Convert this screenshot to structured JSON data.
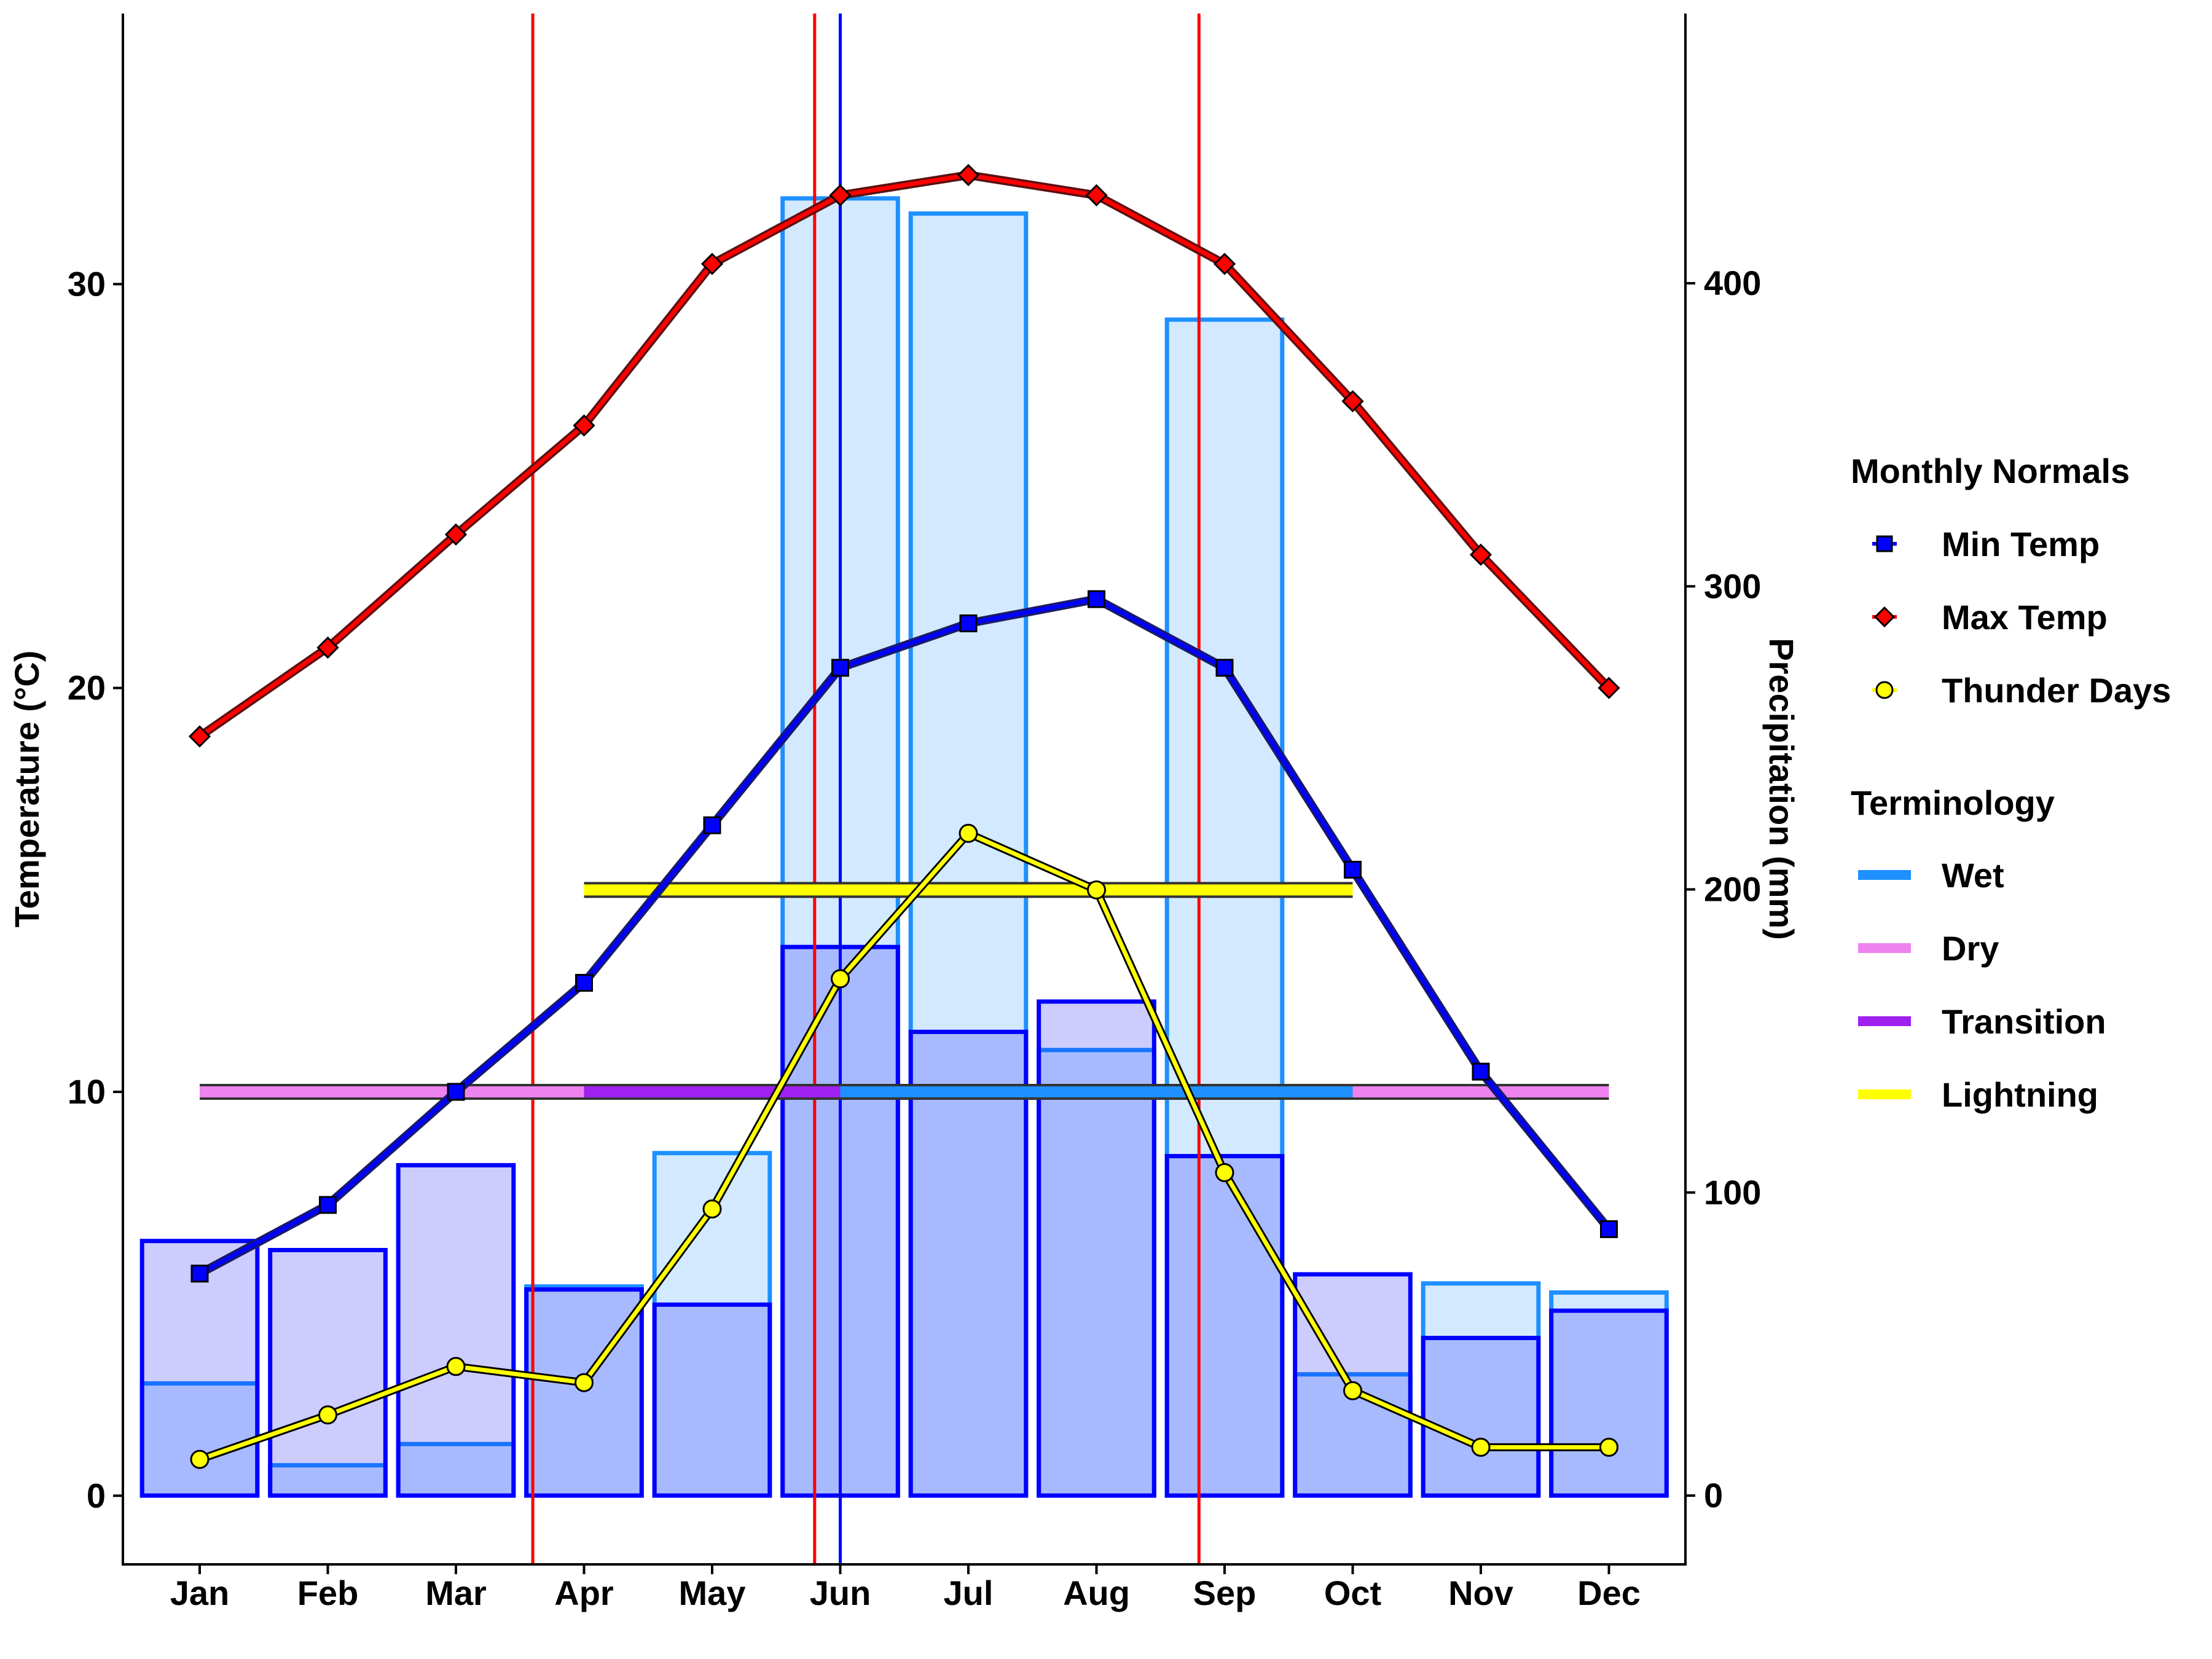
{
  "chart_data": {
    "type": "line",
    "title": "",
    "xlabel": "",
    "ylabel": "Temperature (°C)",
    "y2label": "Precipitation (mm)",
    "ylim": [
      -1.7,
      36.7
    ],
    "y2lim": [
      -22.7,
      489
    ],
    "categories": [
      "Jan",
      "Feb",
      "Mar",
      "Apr",
      "May",
      "Jun",
      "Jul",
      "Aug",
      "Sep",
      "Oct",
      "Nov",
      "Dec"
    ],
    "y_ticks": [
      0,
      10,
      20,
      30
    ],
    "y2_ticks": [
      0,
      100,
      200,
      300,
      400
    ],
    "series": [
      {
        "name": "Min Temp",
        "color": "#0000ff",
        "values": [
          5.5,
          7.2,
          10.0,
          12.7,
          16.6,
          20.5,
          21.6,
          22.2,
          20.5,
          15.5,
          10.5,
          6.6
        ]
      },
      {
        "name": "Max Temp",
        "color": "#ff0000",
        "values": [
          18.8,
          21.0,
          23.8,
          26.5,
          30.5,
          32.2,
          32.7,
          32.2,
          30.5,
          27.1,
          23.3,
          20.0
        ]
      },
      {
        "name": "Thunder Days",
        "color": "#ffff00",
        "values": [
          0.9,
          2.0,
          3.2,
          2.8,
          7.1,
          12.8,
          16.4,
          15.0,
          8.0,
          2.6,
          1.2,
          1.2
        ]
      }
    ],
    "precipitation_bars": {
      "light_series_mm": [
        37,
        10,
        17,
        69,
        113,
        428,
        423,
        147,
        388,
        40,
        70,
        67
      ],
      "dark_series_mm": [
        84,
        81,
        109,
        68,
        63,
        181,
        153,
        163,
        112,
        73,
        52,
        61
      ]
    },
    "terminology_bands": [
      {
        "name": "Dry",
        "color": "#ee82ee",
        "y": 10,
        "from": "Jan",
        "to": "Dec"
      },
      {
        "name": "Transition",
        "color": "#a020f0",
        "y": 10,
        "from": "Apr",
        "to": "Jun"
      },
      {
        "name": "Wet",
        "color": "#1e90ff",
        "y": 10,
        "from": "Jun",
        "to": "Oct"
      },
      {
        "name": "Lightning",
        "color": "#ffff00",
        "y": 15,
        "from": "Apr",
        "to": "Oct"
      }
    ],
    "vertical_lines": [
      {
        "color": "#ff0000",
        "x_month": 3.6
      },
      {
        "color": "#ff0000",
        "x_month": 5.8
      },
      {
        "color": "#0000ff",
        "x_month": 6.0
      },
      {
        "color": "#ff0000",
        "x_month": 8.8
      }
    ],
    "legend_placement": "right",
    "grid": false
  },
  "legend": {
    "monthly_title": "Monthly Normals",
    "monthly_items": [
      {
        "label": "Min Temp",
        "color": "#0000ff"
      },
      {
        "label": "Max Temp",
        "color": "#ff0000"
      },
      {
        "label": "Thunder Days",
        "color": "#ffff00"
      }
    ],
    "terminology_title": "Terminology",
    "terminology_items": [
      {
        "label": "Wet",
        "color": "#1e90ff"
      },
      {
        "label": "Dry",
        "color": "#ee82ee"
      },
      {
        "label": "Transition",
        "color": "#a020f0"
      },
      {
        "label": "Lightning",
        "color": "#ffff00"
      }
    ]
  }
}
